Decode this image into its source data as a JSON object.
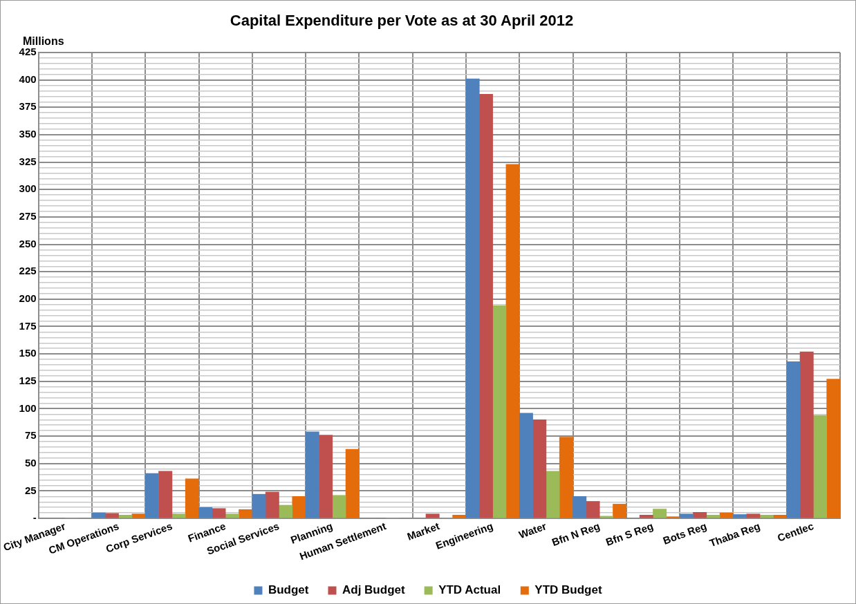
{
  "chart_data": {
    "type": "bar",
    "title": "Capital Expenditure  per Vote as at 30 April 2012",
    "ylabel": "Millions",
    "categories": [
      "City Manager",
      "CM Operations",
      "Corp Services",
      "Finance",
      "Social Services",
      "Planning",
      "Human Settlement",
      "Market",
      "Engineering",
      "Water",
      "Bfn N Reg",
      "Bfn S Reg",
      "Bots Reg",
      "Thaba Reg",
      "Centlec"
    ],
    "series": [
      {
        "name": "Budget",
        "color": "#4f81bd",
        "values": [
          0,
          5,
          41,
          10,
          22,
          79,
          0,
          0,
          401,
          96,
          20,
          0,
          4,
          3.5,
          143
        ]
      },
      {
        "name": "Adj Budget",
        "color": "#c0504d",
        "values": [
          0,
          4.5,
          43,
          9,
          24,
          76,
          0,
          4,
          387,
          90,
          15.5,
          3,
          5.5,
          4,
          152
        ]
      },
      {
        "name": "YTD Actual",
        "color": "#9bbb59",
        "values": [
          0,
          3,
          4,
          4,
          12,
          21,
          0,
          0,
          194,
          43,
          2,
          8.5,
          3,
          3,
          94
        ]
      },
      {
        "name": "YTD Budget",
        "color": "#e46c0a",
        "values": [
          0,
          4,
          36,
          8,
          20,
          63,
          0,
          3,
          323,
          74,
          13,
          1.5,
          5,
          3,
          127
        ]
      }
    ],
    "ylim": [
      0,
      425
    ],
    "yticks": [
      {
        "value": 0,
        "label": "-"
      },
      {
        "value": 5,
        "label": null
      },
      {
        "value": 10,
        "label": null
      },
      {
        "value": 15,
        "label": null
      },
      {
        "value": 20,
        "label": null
      },
      25,
      {
        "value": 30,
        "label": null
      },
      {
        "value": 35,
        "label": null
      },
      {
        "value": 40,
        "label": null
      },
      {
        "value": 45,
        "label": null
      },
      50,
      {
        "value": 55,
        "label": null
      },
      {
        "value": 60,
        "label": null
      },
      {
        "value": 65,
        "label": null
      },
      {
        "value": 70,
        "label": null
      },
      75,
      {
        "value": 80,
        "label": null
      },
      {
        "value": 85,
        "label": null
      },
      {
        "value": 90,
        "label": null
      },
      {
        "value": 95,
        "label": null
      },
      100,
      {
        "value": 105,
        "label": null
      },
      {
        "value": 110,
        "label": null
      },
      {
        "value": 115,
        "label": null
      },
      {
        "value": 120,
        "label": null
      },
      125,
      {
        "value": 130,
        "label": null
      },
      {
        "value": 135,
        "label": null
      },
      {
        "value": 140,
        "label": null
      },
      {
        "value": 145,
        "label": null
      },
      150,
      {
        "value": 155,
        "label": null
      },
      {
        "value": 160,
        "label": null
      },
      {
        "value": 165,
        "label": null
      },
      {
        "value": 170,
        "label": null
      },
      175,
      {
        "value": 180,
        "label": null
      },
      {
        "value": 185,
        "label": null
      },
      {
        "value": 190,
        "label": null
      },
      {
        "value": 195,
        "label": null
      },
      200,
      {
        "value": 205,
        "label": null
      },
      {
        "value": 210,
        "label": null
      },
      {
        "value": 215,
        "label": null
      },
      {
        "value": 220,
        "label": null
      },
      225,
      {
        "value": 230,
        "label": null
      },
      {
        "value": 235,
        "label": null
      },
      {
        "value": 240,
        "label": null
      },
      {
        "value": 245,
        "label": null
      },
      250,
      {
        "value": 255,
        "label": null
      },
      {
        "value": 260,
        "label": null
      },
      {
        "value": 265,
        "label": null
      },
      {
        "value": 270,
        "label": null
      },
      275,
      {
        "value": 280,
        "label": null
      },
      {
        "value": 285,
        "label": null
      },
      {
        "value": 290,
        "label": null
      },
      {
        "value": 295,
        "label": null
      },
      300,
      {
        "value": 305,
        "label": null
      },
      {
        "value": 310,
        "label": null
      },
      {
        "value": 315,
        "label": null
      },
      {
        "value": 320,
        "label": null
      },
      325,
      {
        "value": 330,
        "label": null
      },
      {
        "value": 335,
        "label": null
      },
      {
        "value": 340,
        "label": null
      },
      {
        "value": 345,
        "label": null
      },
      350,
      {
        "value": 355,
        "label": null
      },
      {
        "value": 360,
        "label": null
      },
      {
        "value": 365,
        "label": null
      },
      {
        "value": 370,
        "label": null
      },
      375,
      {
        "value": 380,
        "label": null
      },
      {
        "value": 385,
        "label": null
      },
      {
        "value": 390,
        "label": null
      },
      {
        "value": 395,
        "label": null
      },
      400,
      {
        "value": 405,
        "label": null
      },
      {
        "value": 410,
        "label": null
      },
      {
        "value": 415,
        "label": null
      },
      {
        "value": 420,
        "label": null
      },
      425
    ],
    "grid": true,
    "legend": "bottom"
  }
}
